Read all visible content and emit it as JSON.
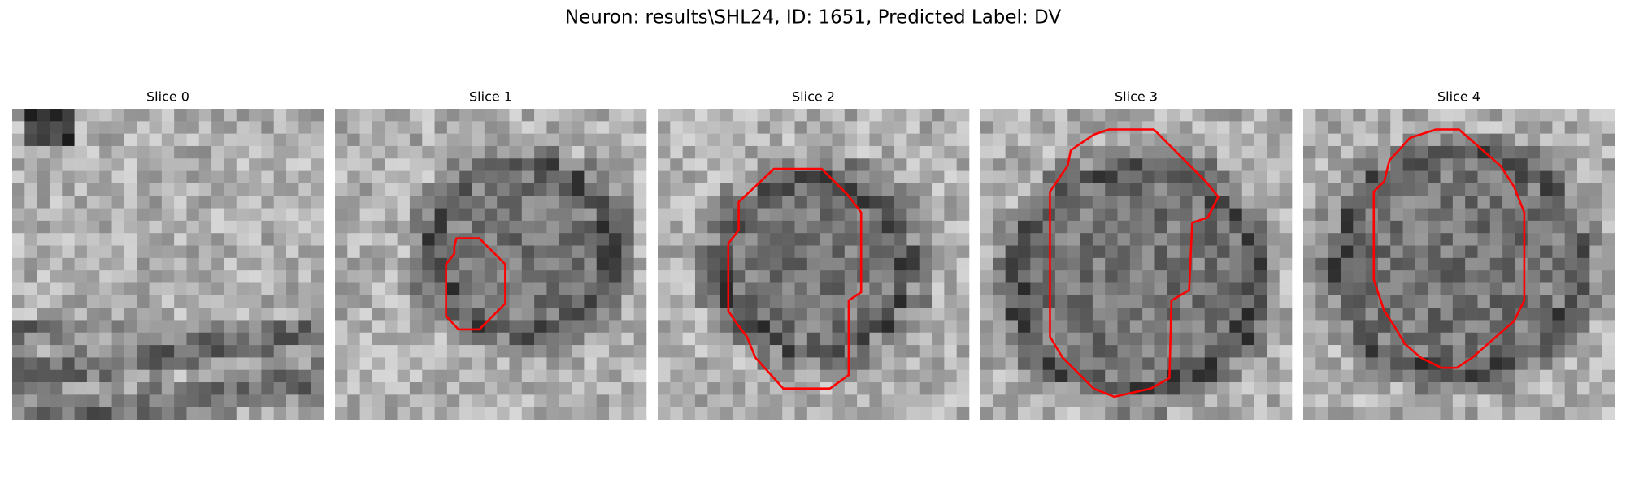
{
  "title": "Neuron: results\\SHL24, ID: 1651, Predicted Label: DV",
  "panels": [
    "Slice 0",
    "Slice 1",
    "Slice 2",
    "Slice 3",
    "Slice 4"
  ]
}
